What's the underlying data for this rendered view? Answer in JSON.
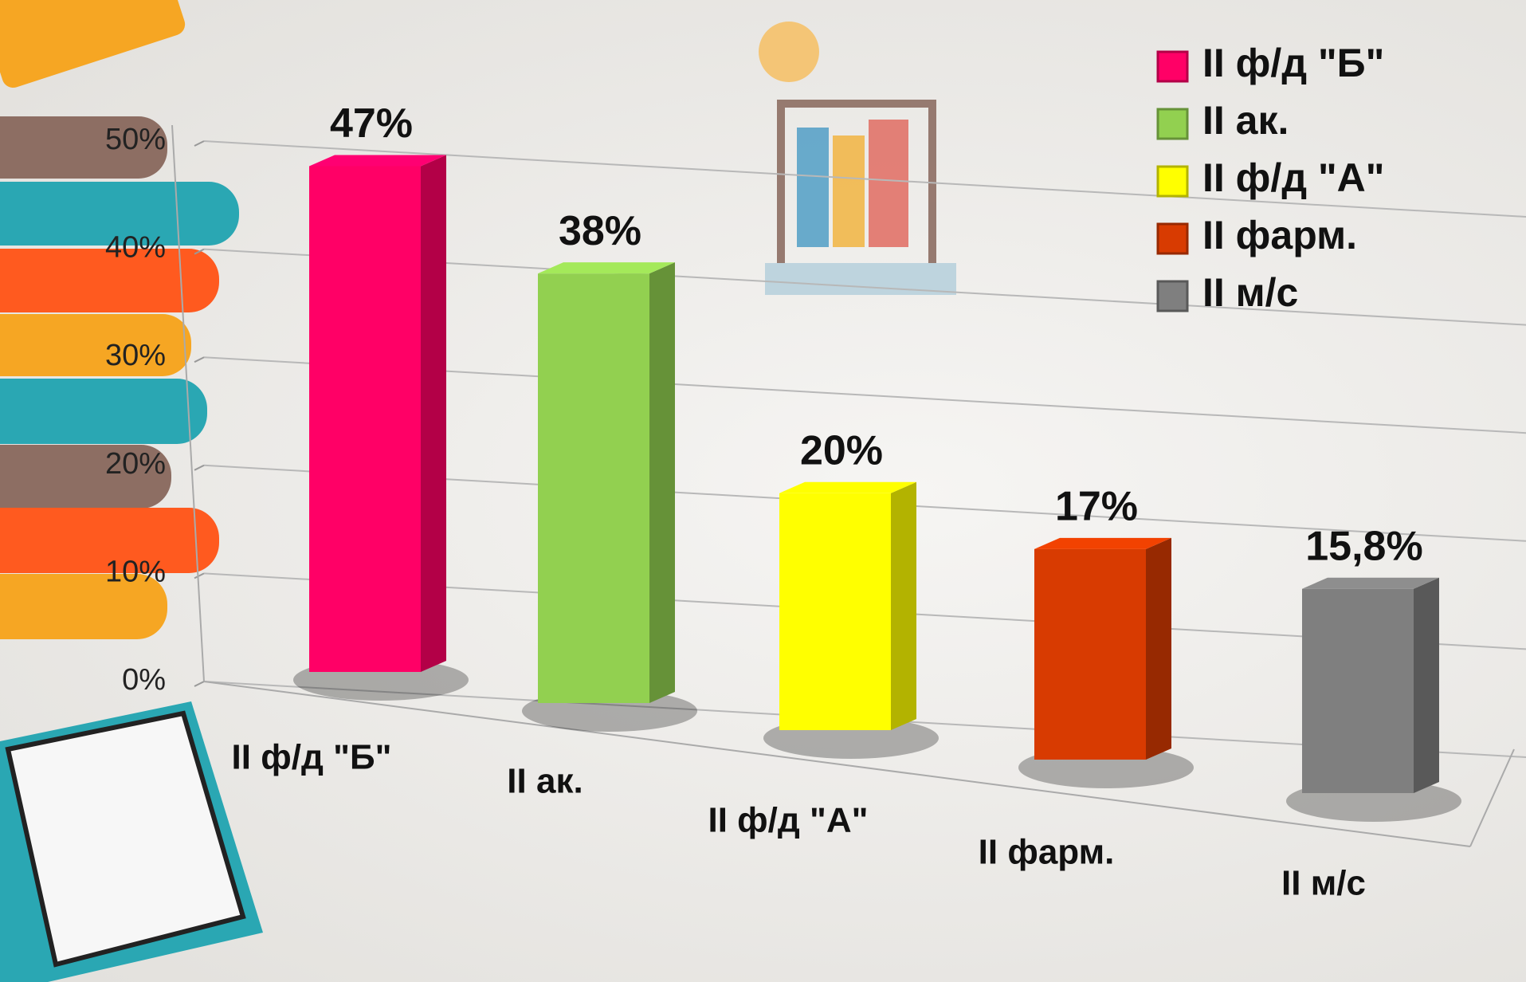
{
  "chart_data": {
    "type": "bar3d",
    "categories": [
      "II ф/д \"Б\"",
      "II ак.",
      "II ф/д \"А\"",
      "II фарм.",
      "II м/с"
    ],
    "values": [
      47,
      38,
      20,
      17,
      15.8
    ],
    "value_labels": [
      "47%",
      "38%",
      "20%",
      "17%",
      "15,8%"
    ],
    "colors": [
      "#ff0066",
      "#92d050",
      "#ffff00",
      "#d83b01",
      "#7f7f7f"
    ],
    "ylim": [
      0,
      50
    ],
    "yticks": [
      {
        "value": 0,
        "label": "0%"
      },
      {
        "value": 10,
        "label": "10%"
      },
      {
        "value": 20,
        "label": "20%"
      },
      {
        "value": 30,
        "label": "30%"
      },
      {
        "value": 40,
        "label": "40%"
      },
      {
        "value": 50,
        "label": "50%"
      }
    ],
    "grid": true,
    "legend": "top-right"
  }
}
